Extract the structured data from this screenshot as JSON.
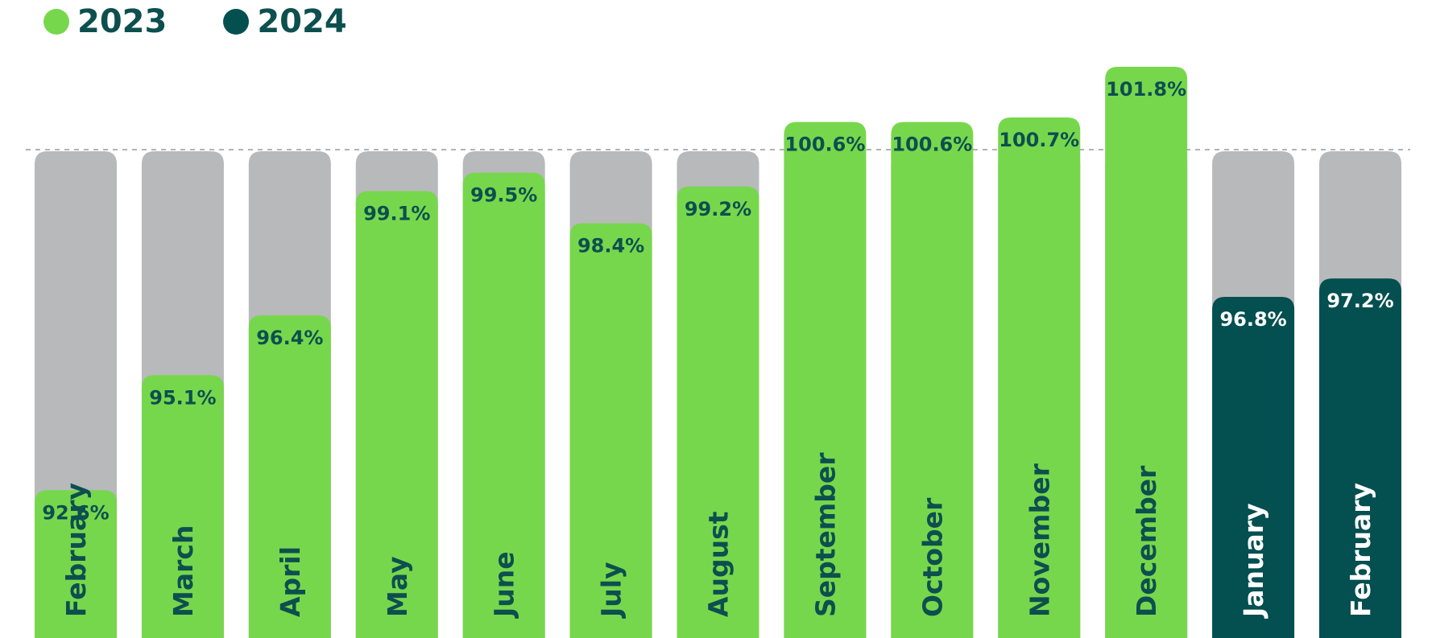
{
  "legend": [
    {
      "label": "2023",
      "color": "#77d74c"
    },
    {
      "label": "2024",
      "color": "#044f50"
    }
  ],
  "chart_data": {
    "type": "bar",
    "categories": [
      "February",
      "March",
      "April",
      "May",
      "June",
      "July",
      "August",
      "September",
      "October",
      "November",
      "December",
      "January",
      "February"
    ],
    "series": [
      {
        "name": "2023",
        "values": [
          92.6,
          95.1,
          96.4,
          99.1,
          99.5,
          98.4,
          99.2,
          100.6,
          100.6,
          100.7,
          101.8,
          null,
          null
        ]
      },
      {
        "name": "2024",
        "values": [
          null,
          null,
          null,
          null,
          null,
          null,
          null,
          null,
          null,
          null,
          null,
          96.8,
          97.2
        ]
      }
    ],
    "data_labels": [
      "92.6%",
      "95.1%",
      "96.4%",
      "99.1%",
      "99.5%",
      "98.4%",
      "99.2%",
      "100.6%",
      "100.6%",
      "100.7%",
      "101.8%",
      "96.8%",
      "97.2%"
    ],
    "reference_line": 100,
    "ylim": [
      0,
      100
    ],
    "grid": false,
    "legend_position": "top-left",
    "colors": {
      "2023": "#77d74c",
      "2024": "#044f50",
      "track": "#b8b9bb",
      "reference_line": "#9a9a9a",
      "label_dark": "#0d4f4f",
      "label_light": "#ffffff"
    }
  }
}
